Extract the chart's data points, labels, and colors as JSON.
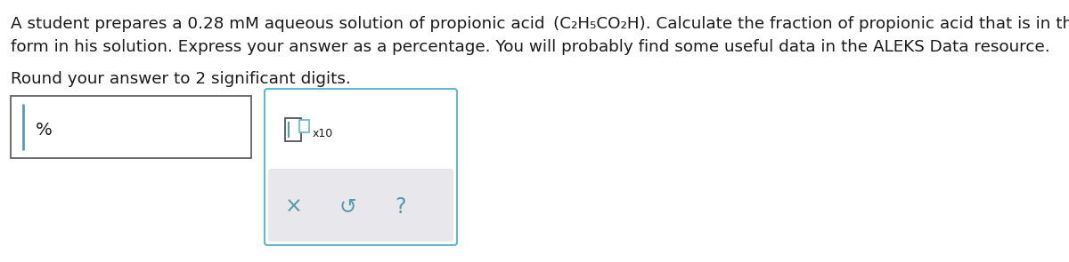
{
  "background_color": "#ffffff",
  "text_line1": "A student prepares a 0.28 mM aqueous solution of propionic acid  (C₂H₅CO₂H). Calculate the fraction of propionic acid that is in the dissociated",
  "text_line2": "form in his solution. Express your answer as a percentage. You will probably find some useful data in the ALEKS Data resource.",
  "text_line3": "Round your answer to 2 significant digits.",
  "percent_label": "%",
  "x10_label": "x10",
  "cross_symbol": "×",
  "undo_symbol": "↺",
  "question_symbol": "?",
  "font_size_main": 13.2,
  "text_color": "#1a1a1a",
  "box_border_color": "#555555",
  "panel_border_color": "#62b8d0",
  "cursor_color": "#5599cc",
  "bottom_panel_bg": "#e8e8ec",
  "icon_color": "#5599aa"
}
